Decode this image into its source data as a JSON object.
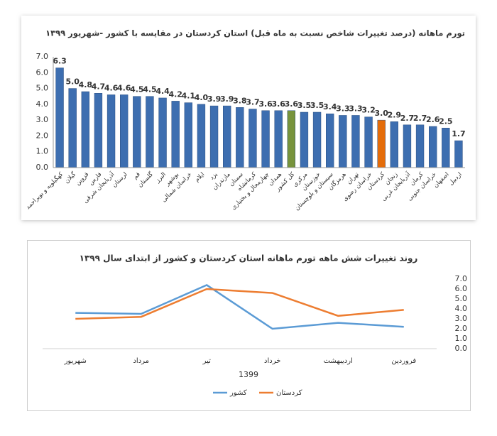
{
  "chart_data": [
    {
      "type": "bar",
      "title": "تورم ماهانه (درصد تغییرات شاخص نسبت به ماه قبل) استان کردستان در مقایسه با کشور -شهریور ۱۳۹۹",
      "categories": [
        "کهگیلویه و بویراحمد",
        "گیلان",
        "قزوین",
        "فارس",
        "آذربایجان شرقی",
        "لرستان",
        "قم",
        "گلستان",
        "البرز",
        "بوشهر",
        "خراسان شمالی",
        "ایلام",
        "یزد",
        "مازندران",
        "سمنان",
        "کرمانشاه",
        "چهارمحال و بختیاری",
        "همدان",
        "کل کشور",
        "مرکزی",
        "خوزستان",
        "سیستان و بلوچستان",
        "هرمزگان",
        "تهران",
        "خراسان رضوی",
        "کردستان",
        "زنجان",
        "آذربایجان غربی",
        "کرمان",
        "خراسان جنوبی",
        "اصفهان",
        "اردبیل"
      ],
      "values": [
        6.3,
        5.0,
        4.8,
        4.7,
        4.6,
        4.6,
        4.5,
        4.5,
        4.4,
        4.2,
        4.1,
        4.0,
        3.9,
        3.9,
        3.8,
        3.7,
        3.6,
        3.6,
        3.6,
        3.5,
        3.5,
        3.4,
        3.3,
        3.3,
        3.2,
        3.0,
        2.9,
        2.7,
        2.7,
        2.6,
        2.5,
        1.7
      ],
      "value_labels": [
        "6.3",
        "5.0",
        "4.8",
        "4.7",
        "4.6",
        "4.6",
        "4.5",
        "4.5",
        "4.4",
        "4.2",
        "4.1",
        "4.0",
        "3.9",
        "3.9",
        "3.8",
        "3.7",
        "3.6",
        "3.6",
        "3.6",
        "3.5",
        "3.5",
        "3.4",
        "3.3",
        "3.3",
        "3.2",
        "3.0",
        "2.9",
        "2.7",
        "2.7",
        "2.6",
        "2.5",
        "1.7"
      ],
      "colors": [
        "#3d6eb0",
        "#3d6eb0",
        "#3d6eb0",
        "#3d6eb0",
        "#3d6eb0",
        "#3d6eb0",
        "#3d6eb0",
        "#3d6eb0",
        "#3d6eb0",
        "#3d6eb0",
        "#3d6eb0",
        "#3d6eb0",
        "#3d6eb0",
        "#3d6eb0",
        "#3d6eb0",
        "#3d6eb0",
        "#3d6eb0",
        "#3d6eb0",
        "#77933c",
        "#3d6eb0",
        "#3d6eb0",
        "#3d6eb0",
        "#3d6eb0",
        "#3d6eb0",
        "#3d6eb0",
        "#e46c0a",
        "#3d6eb0",
        "#3d6eb0",
        "#3d6eb0",
        "#3d6eb0",
        "#3d6eb0",
        "#3d6eb0"
      ],
      "ylim": [
        0,
        7
      ],
      "yticks": [
        {
          "value": 0,
          "label": "0.0"
        },
        {
          "value": 1,
          "label": "1.0"
        },
        {
          "value": 2,
          "label": "2.0"
        },
        {
          "value": 3,
          "label": "3.0"
        },
        {
          "value": 4,
          "label": "4.0"
        },
        {
          "value": 5,
          "label": "5.0"
        },
        {
          "value": 6,
          "label": "6.0"
        },
        {
          "value": 7,
          "label": "7.0"
        }
      ],
      "grid": false
    },
    {
      "type": "line",
      "title": "روند تغییرات شش ماهه تورم ماهانه استان کردستان و کشور از ابتدای سال ۱۳۹۹",
      "categories": [
        "شهریور",
        "مرداد",
        "تیر",
        "خرداد",
        "اردیبهشت",
        "فروردین"
      ],
      "x_label": "1399",
      "series": [
        {
          "name": "کشور",
          "color": "#5b9bd5",
          "values": [
            3.6,
            3.5,
            6.4,
            2.0,
            2.6,
            2.2
          ]
        },
        {
          "name": "کردستان",
          "color": "#ed7d31",
          "values": [
            3.0,
            3.2,
            6.0,
            5.6,
            3.3,
            3.9
          ]
        }
      ],
      "ylim": [
        0,
        7
      ],
      "yticks": [
        {
          "value": 0,
          "label": "0.0"
        },
        {
          "value": 1,
          "label": "1.0"
        },
        {
          "value": 2,
          "label": "2.0"
        },
        {
          "value": 3,
          "label": "3.0"
        },
        {
          "value": 4,
          "label": "4.0"
        },
        {
          "value": 5,
          "label": "5.0"
        },
        {
          "value": 6,
          "label": "6.0"
        },
        {
          "value": 7,
          "label": "7.0"
        }
      ],
      "grid": false,
      "legend": "bottom"
    }
  ]
}
